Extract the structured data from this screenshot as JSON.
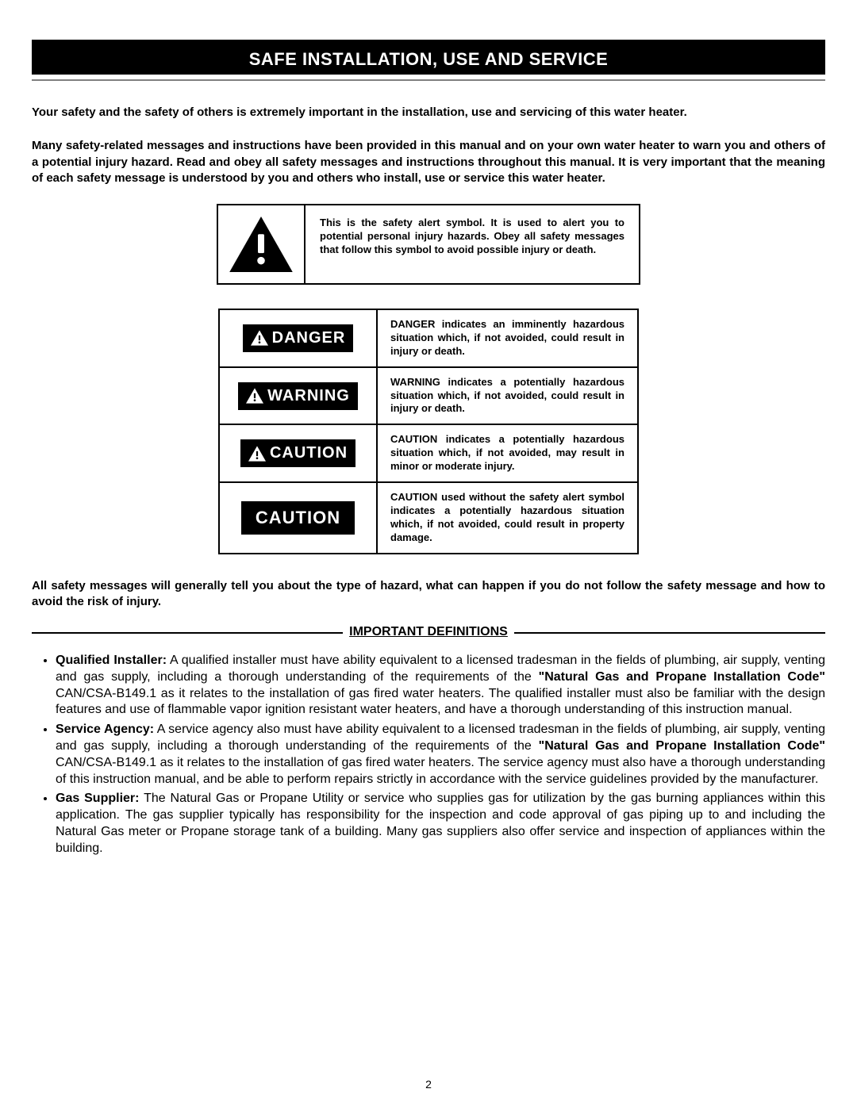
{
  "colors": {
    "background": "#ffffff",
    "header_bg": "#000000",
    "header_text": "#ffffff",
    "body_text": "#000000",
    "border": "#000000",
    "underline": "#808080"
  },
  "header": {
    "title": "SAFE INSTALLATION, USE AND SERVICE"
  },
  "intro_paragraphs": [
    "Your safety and the safety of others is extremely important in the installation, use and servicing of this water heater.",
    "Many safety-related messages and instructions have been provided in this manual and on your own water heater to warn you and others of a potential injury hazard.  Read and obey all safety messages and instructions throughout this manual.  It is very important that the meaning of each safety message is understood by you and others who install, use or service this water heater."
  ],
  "alert_symbol": {
    "text": "This is the safety alert symbol.  It is used to alert you to potential personal injury hazards. Obey all safety messages that follow this symbol to avoid possible injury or death."
  },
  "signals": [
    {
      "label": "DANGER",
      "has_icon": true,
      "description": "DANGER indicates an imminently hazardous situation which, if not avoided, could result in injury or death."
    },
    {
      "label": "WARNING",
      "has_icon": true,
      "description": "WARNING indicates a potentially hazardous situation which, if not avoided, could result in injury or death."
    },
    {
      "label": "CAUTION",
      "has_icon": true,
      "description": "CAUTION indicates a potentially hazardous situation which, if not avoided, may result in minor or moderate injury."
    },
    {
      "label": "CAUTION",
      "has_icon": false,
      "description": "CAUTION used without the safety alert symbol indicates a potentially hazardous situation which, if not avoided, could result in property damage."
    }
  ],
  "outro_paragraph": "All safety messages will generally tell you about the type of hazard, what can happen if you do not follow the safety message and how to avoid the risk of injury.",
  "definitions": {
    "heading": "IMPORTANT DEFINITIONS",
    "items": [
      {
        "term": "Qualified Installer:",
        "text_before_strong": "  A qualified installer must have ability equivalent to a licensed tradesman in the fields of plumbing, air supply, venting and gas supply, including a thorough understanding of the requirements of the ",
        "strong": "\"Natural Gas and Propane Installation Code\"",
        "text_after_strong": " CAN/CSA-B149.1 as it relates to the installation of gas fired water heaters.  The qualified installer must also be familiar with the  design features and use of flammable vapor ignition resistant water heaters, and have a thorough understanding of this  instruction manual."
      },
      {
        "term": "Service Agency:",
        "text_before_strong": "  A service agency also must have ability equivalent to a licensed tradesman in the fields of plumbing, air supply, venting and gas supply, including a thorough understanding of the requirements of the ",
        "strong": "\"Natural Gas and Propane Installation Code\"",
        "text_after_strong": " CAN/CSA-B149.1 as it relates to the installation of gas fired water heaters.  The service agency must also have a thorough  understanding of this instruction manual, and be able to perform repairs strictly in accordance with the service guidelines provided by the manufacturer."
      },
      {
        "term": "Gas Supplier:",
        "text_before_strong": "  The Natural Gas or Propane Utility or service who supplies gas for utilization by the gas burning appliances within this application. The gas supplier typically has responsibility for the inspection and code approval of gas piping up to and including the Natural Gas meter or Propane storage tank of a building. Many gas suppliers also offer service and inspection of appliances within the building.",
        "strong": "",
        "text_after_strong": ""
      }
    ]
  },
  "page_number": "2"
}
